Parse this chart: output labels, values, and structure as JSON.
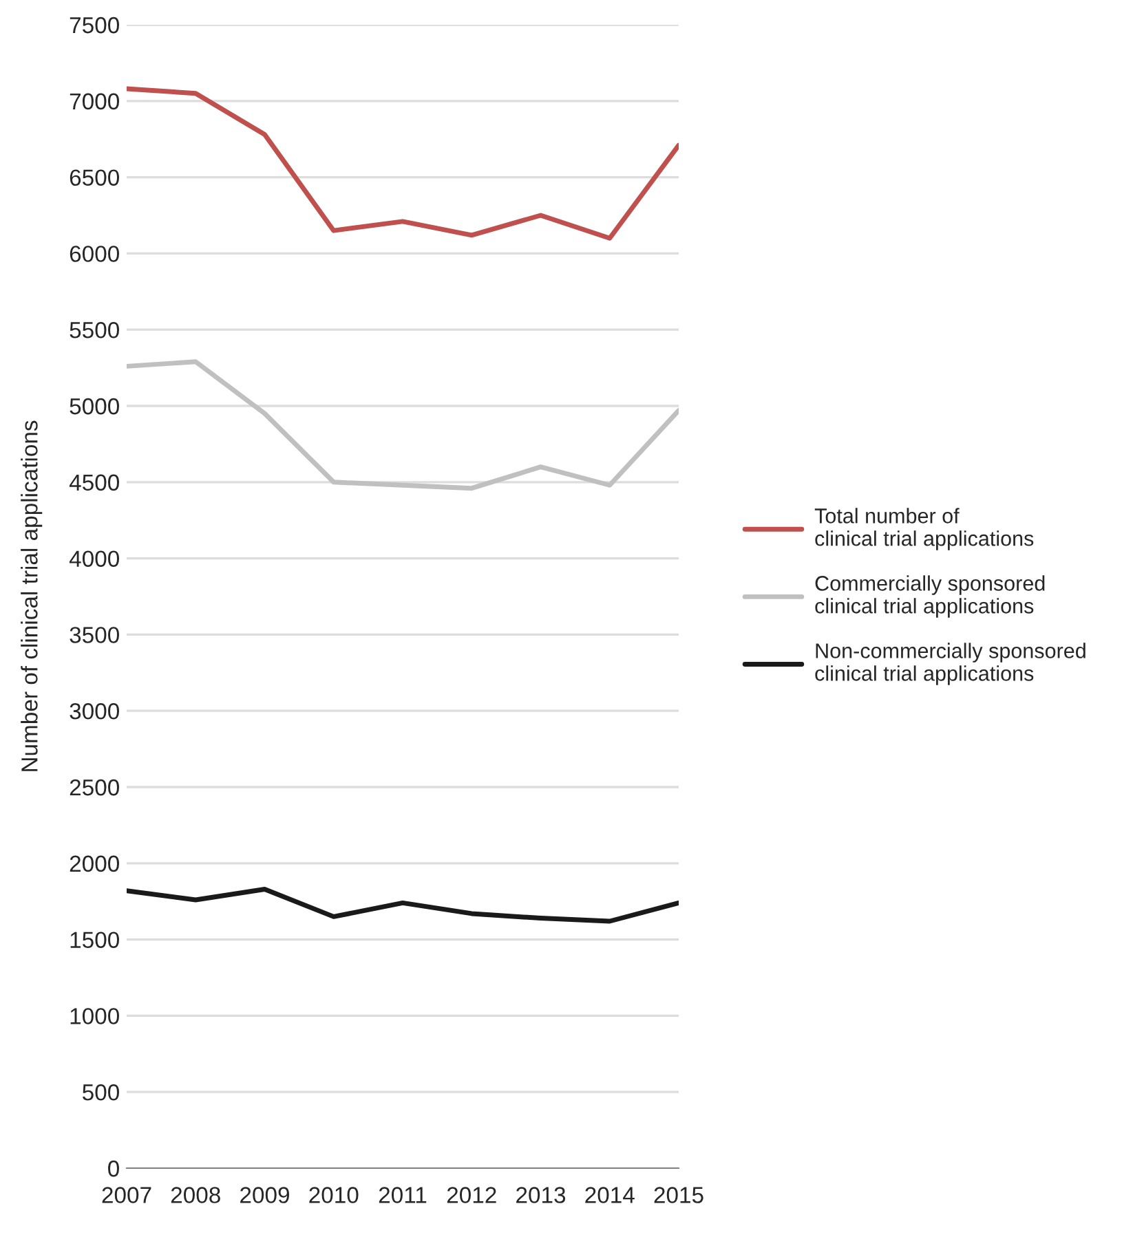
{
  "chart_data": {
    "type": "line",
    "ylabel": "Number of clinical trial applications",
    "x": [
      2007,
      2008,
      2009,
      2010,
      2011,
      2012,
      2013,
      2014,
      2015
    ],
    "series": [
      {
        "name": "Total number of\nclinical trial applications",
        "color": "#c0504d",
        "values": [
          7080,
          7050,
          6780,
          6150,
          6210,
          6120,
          6250,
          6100,
          6710
        ]
      },
      {
        "name": "Commercially sponsored\nclinical trial applications",
        "color": "#c0c0c0",
        "values": [
          5260,
          5290,
          4950,
          4500,
          4480,
          4460,
          4600,
          4480,
          4970
        ]
      },
      {
        "name": "Non-commercially sponsored\nclinical trial applications",
        "color": "#1a1a1a",
        "values": [
          1820,
          1760,
          1830,
          1650,
          1740,
          1670,
          1640,
          1620,
          1740
        ]
      }
    ],
    "xlim": [
      2007,
      2015
    ],
    "xticks": [
      2007,
      2008,
      2009,
      2010,
      2011,
      2012,
      2013,
      2014,
      2015
    ],
    "ylim": [
      0,
      7500
    ],
    "yticks": [
      0,
      500,
      1000,
      1500,
      2000,
      2500,
      3000,
      3500,
      4000,
      4500,
      5000,
      5500,
      6000,
      6500,
      7000,
      7500
    ],
    "grid": "y",
    "legend": "right"
  }
}
